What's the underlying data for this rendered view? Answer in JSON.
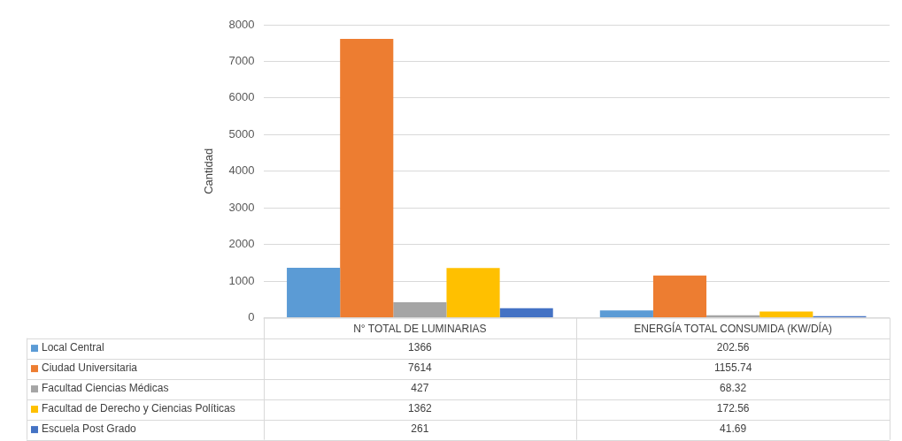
{
  "chart_data": {
    "type": "bar",
    "ylabel": "Cantidad",
    "categories": [
      "N° TOTAL DE LUMINARIAS",
      "ENERGÍA TOTAL CONSUMIDA (KW/DÍA)"
    ],
    "series": [
      {
        "name": "Local Central",
        "color": "#5b9bd5",
        "values": [
          1366,
          202.56
        ]
      },
      {
        "name": "Ciudad Universitaria",
        "color": "#ed7d31",
        "values": [
          7614,
          1155.74
        ]
      },
      {
        "name": "Facultad Ciencias Médicas",
        "color": "#a5a5a5",
        "values": [
          427,
          68.32
        ]
      },
      {
        "name": "Facultad de Derecho y Ciencias Políticas",
        "color": "#ffc000",
        "values": [
          1362,
          172.56
        ]
      },
      {
        "name": "Escuela Post Grado",
        "color": "#4472c4",
        "values": [
          261,
          41.69
        ]
      }
    ],
    "ylim": [
      0,
      8000
    ],
    "yticks": [
      0,
      1000,
      2000,
      3000,
      4000,
      5000,
      6000,
      7000,
      8000
    ],
    "grid": "y",
    "legend": "bottom left",
    "data_labels": true
  }
}
